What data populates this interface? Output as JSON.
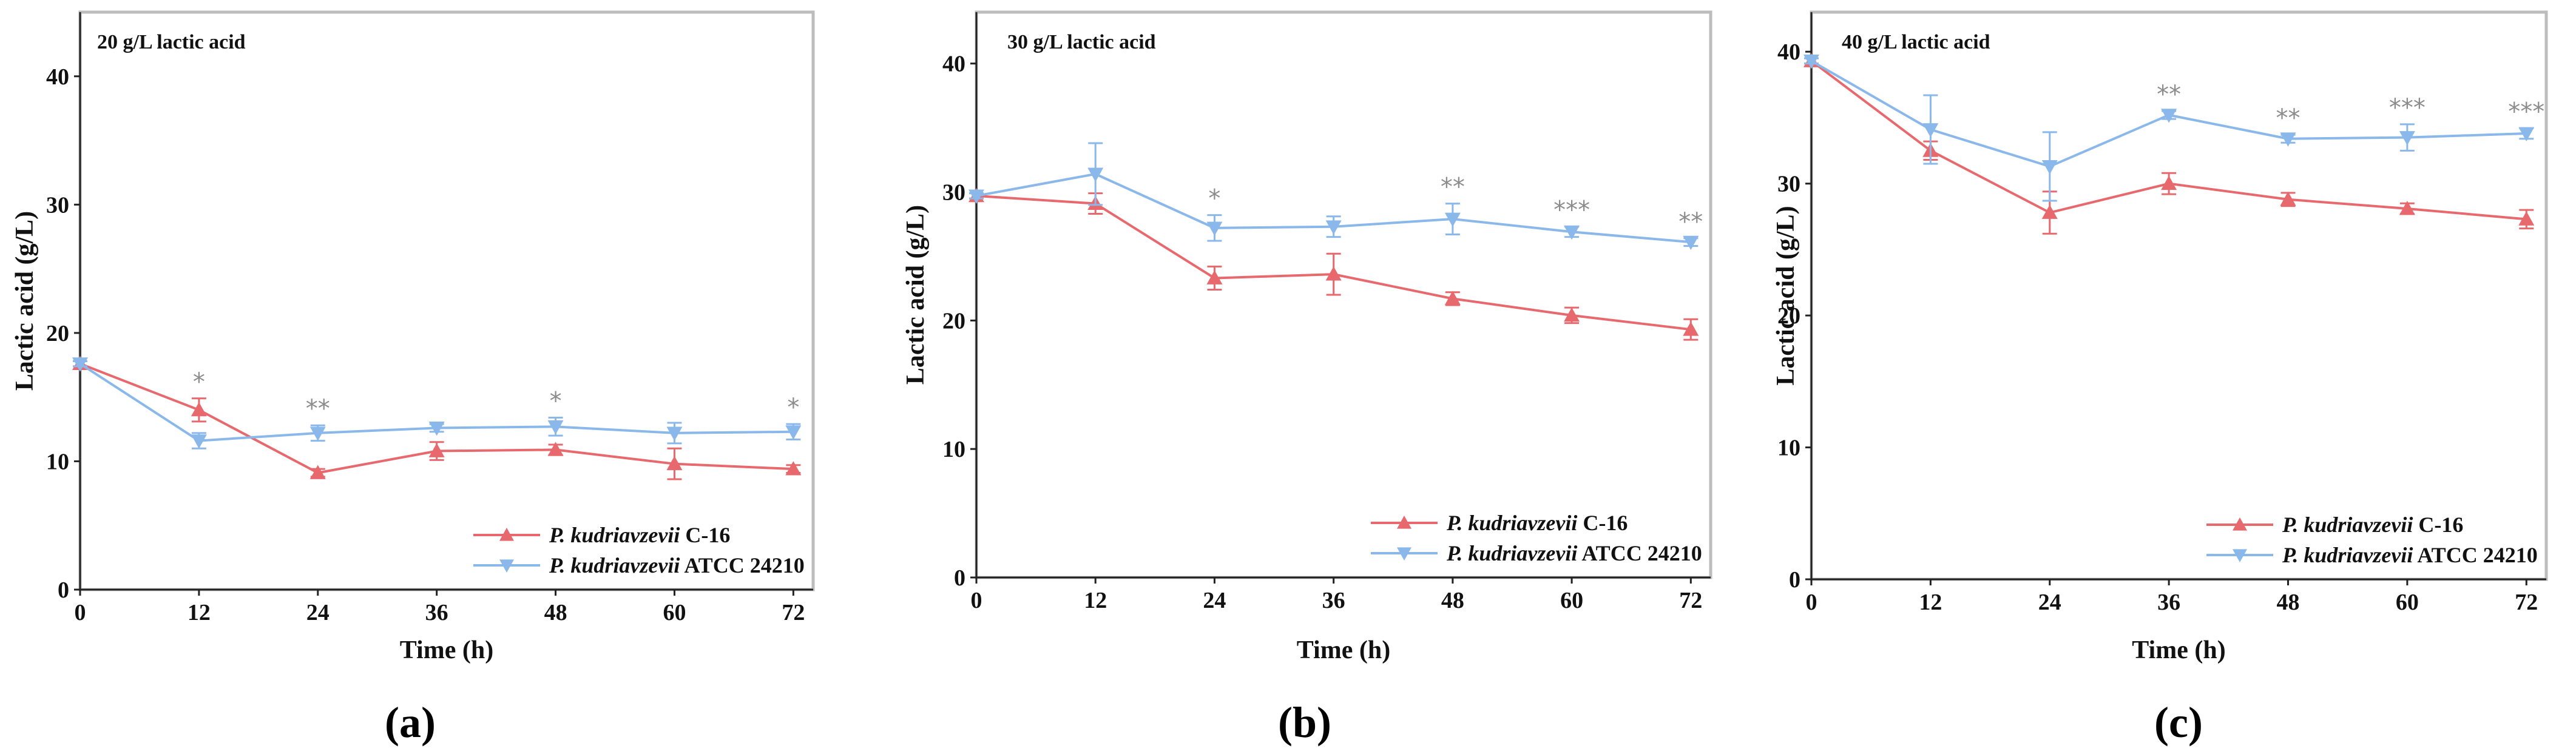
{
  "chart_data": [
    {
      "type": "line",
      "panel_label": "(a)",
      "title": "20 g/L lactic acid",
      "xlabel": "Time (h)",
      "ylabel": "Lactic acid (g/L)",
      "x": [
        0,
        12,
        24,
        36,
        48,
        60,
        72
      ],
      "xticks": [
        "0",
        "12",
        "24",
        "36",
        "48",
        "60",
        "72"
      ],
      "yticks": [
        "0",
        "10",
        "20",
        "30",
        "40"
      ],
      "xlim": [
        0,
        74
      ],
      "ylim": [
        0,
        45
      ],
      "legend_position": "bottom-right",
      "series": [
        {
          "name_italic": "P. kudriavzevii",
          "name_rest": " C-16",
          "color": "#e8696d",
          "marker": "triangle-up",
          "values": [
            17.6,
            14.0,
            9.1,
            10.8,
            10.9,
            9.8,
            9.4
          ],
          "errors": [
            0.2,
            0.9,
            0.3,
            0.7,
            0.4,
            1.2,
            0.3
          ]
        },
        {
          "name_italic": "P. kudriavzevii",
          "name_rest": " ATCC 24210",
          "color": "#8ab8ea",
          "marker": "triangle-down",
          "values": [
            17.6,
            11.6,
            12.2,
            12.6,
            12.7,
            12.2,
            12.3
          ],
          "errors": [
            0.2,
            0.6,
            0.6,
            0.3,
            0.7,
            0.8,
            0.6
          ]
        }
      ],
      "annotations": [
        {
          "x": 12,
          "text": "*"
        },
        {
          "x": 24,
          "text": "**"
        },
        {
          "x": 48,
          "text": "*"
        },
        {
          "x": 72,
          "text": "*"
        }
      ]
    },
    {
      "type": "line",
      "panel_label": "(b)",
      "title": "30 g/L lactic acid",
      "xlabel": "Time (h)",
      "ylabel": "Lactic acid (g/L)",
      "x": [
        0,
        12,
        24,
        36,
        48,
        60,
        72
      ],
      "xticks": [
        "0",
        "12",
        "24",
        "36",
        "48",
        "60",
        "72"
      ],
      "yticks": [
        "0",
        "10",
        "20",
        "30",
        "40"
      ],
      "xlim": [
        0,
        74
      ],
      "ylim": [
        0,
        44
      ],
      "legend_position": "bottom-right",
      "series": [
        {
          "name_italic": "P. kudriavzevii",
          "name_rest": " C-16",
          "color": "#e8696d",
          "marker": "triangle-up",
          "values": [
            29.7,
            29.1,
            23.3,
            23.6,
            21.7,
            20.4,
            19.3
          ],
          "errors": [
            0.2,
            0.8,
            0.9,
            1.6,
            0.5,
            0.6,
            0.8
          ]
        },
        {
          "name_italic": "P. kudriavzevii",
          "name_rest": " ATCC 24210",
          "color": "#8ab8ea",
          "marker": "triangle-down",
          "values": [
            29.7,
            31.4,
            27.2,
            27.3,
            27.9,
            26.9,
            26.1
          ],
          "errors": [
            0.2,
            2.4,
            1.0,
            0.8,
            1.2,
            0.4,
            0.3
          ]
        }
      ],
      "annotations": [
        {
          "x": 24,
          "text": "*"
        },
        {
          "x": 48,
          "text": "**"
        },
        {
          "x": 60,
          "text": "***"
        },
        {
          "x": 72,
          "text": "**"
        }
      ]
    },
    {
      "type": "line",
      "panel_label": "(c)",
      "title": "40 g/L lactic acid",
      "xlabel": "Time (h)",
      "ylabel": "Lactic acid (g/L)",
      "x": [
        0,
        12,
        24,
        36,
        48,
        60,
        72
      ],
      "xticks": [
        "0",
        "12",
        "24",
        "36",
        "48",
        "60",
        "72"
      ],
      "yticks": [
        "0",
        "10",
        "20",
        "30",
        "40"
      ],
      "xlim": [
        0,
        74
      ],
      "ylim": [
        0,
        43
      ],
      "legend_position": "bottom-right",
      "series": [
        {
          "name_italic": "P. kudriavzevii",
          "name_rest": " C-16",
          "color": "#e8696d",
          "marker": "triangle-up",
          "values": [
            39.3,
            32.5,
            27.8,
            30.0,
            28.8,
            28.1,
            27.3
          ],
          "errors": [
            0.2,
            0.7,
            1.6,
            0.8,
            0.5,
            0.4,
            0.7
          ]
        },
        {
          "name_italic": "P. kudriavzevii",
          "name_rest": " ATCC 24210",
          "color": "#8ab8ea",
          "marker": "triangle-down",
          "values": [
            39.3,
            34.1,
            31.3,
            35.2,
            33.4,
            33.5,
            33.8
          ],
          "errors": [
            0.2,
            2.6,
            2.6,
            0.3,
            0.3,
            1.0,
            0.4
          ]
        }
      ],
      "annotations": [
        {
          "x": 36,
          "text": "**"
        },
        {
          "x": 48,
          "text": "**"
        },
        {
          "x": 60,
          "text": "***"
        },
        {
          "x": 72,
          "text": "***"
        }
      ]
    }
  ]
}
